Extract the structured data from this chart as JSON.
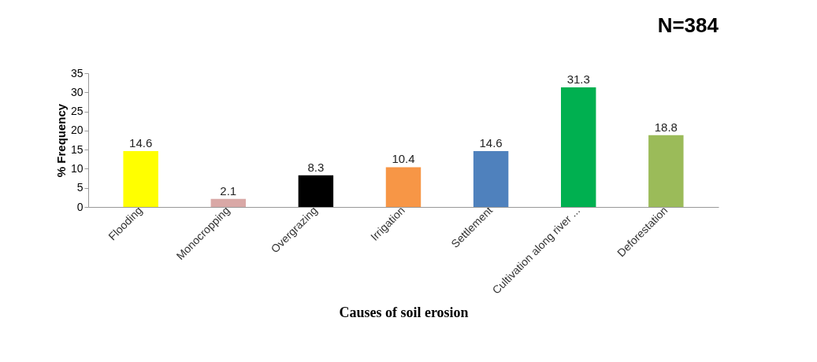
{
  "chart_data": {
    "type": "bar",
    "title": "N=384",
    "xlabel": "Causes of soil erosion",
    "ylabel": "% Frequency",
    "categories": [
      "Flooding",
      "Monocropping",
      "Overgrazing",
      "Irrigation",
      "Settlement",
      "Cultivation along river ...",
      "Deforestation"
    ],
    "values": [
      14.6,
      2.1,
      8.3,
      10.4,
      14.6,
      31.3,
      18.8
    ],
    "colors": [
      "#ffff00",
      "#d9a8a6",
      "#000000",
      "#f79646",
      "#4f81bd",
      "#00b050",
      "#9bbb59"
    ],
    "ylim": [
      0,
      35
    ],
    "yticks": [
      0,
      5,
      10,
      15,
      20,
      25,
      30,
      35
    ],
    "grid": false,
    "data_labels": true
  }
}
